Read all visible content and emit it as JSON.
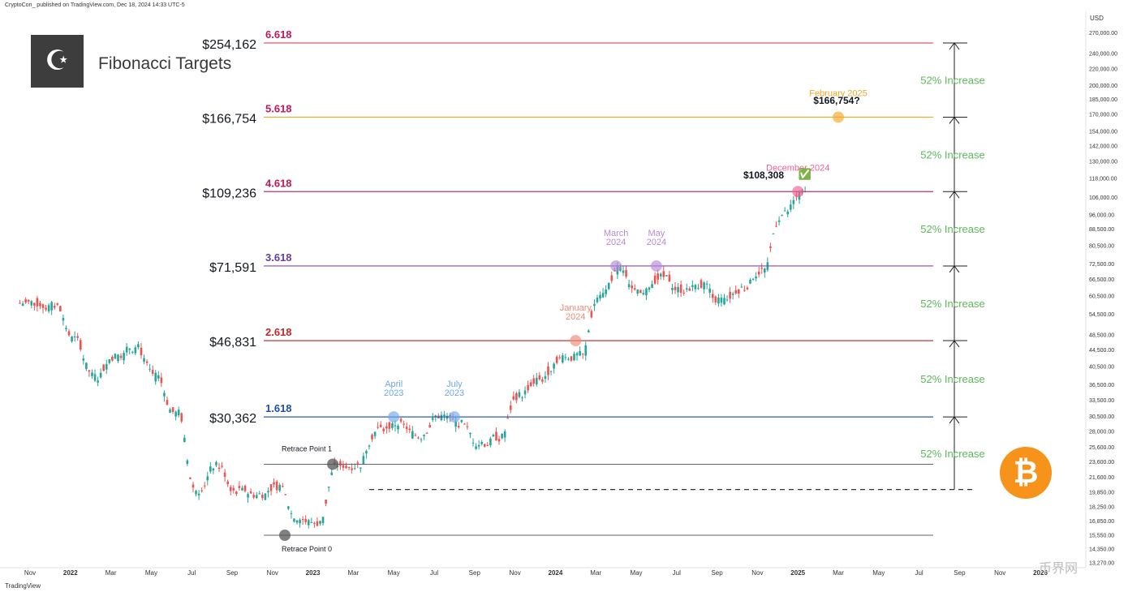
{
  "header": {
    "published": "CryptoCon_ published on TradingView.com, Dec 18, 2024 14:33 UTC-5",
    "title": "Fibonacci Targets",
    "logo": "C-logo-icon"
  },
  "footer": {
    "brand": "TradingView",
    "watermark": "币界网"
  },
  "colors": {
    "up": "#26a69a",
    "down": "#ef5350",
    "increase": "#5cb85c",
    "btc": "#f7931a"
  },
  "chart_data": {
    "type": "candlestick",
    "axis_currency": "USD",
    "scale": "log",
    "y_ticks": [
      "270,000.00",
      "240,000.00",
      "220,000.00",
      "200,000.00",
      "185,000.00",
      "170,000.00",
      "154,000.00",
      "142,000.00",
      "130,000.00",
      "118,000.00",
      "106,000.00",
      "96,000.00",
      "88,500.00",
      "80,500.00",
      "72,500.00",
      "66,500.00",
      "60,500.00",
      "54,500.00",
      "48,500.00",
      "44,500.00",
      "40,500.00",
      "36,500.00",
      "33,500.00",
      "30,500.00",
      "28,000.00",
      "25,600.00",
      "23,600.00",
      "21,600.00",
      "19,850.00",
      "18,250.00",
      "16,850.00",
      "15,550.00",
      "14,350.00",
      "13,270.00"
    ],
    "x_ticks": [
      "Nov",
      "2022",
      "Mar",
      "May",
      "Jul",
      "Sep",
      "Nov",
      "2023",
      "Mar",
      "May",
      "Jul",
      "Sep",
      "Nov",
      "2024",
      "Mar",
      "May",
      "Jul",
      "Sep",
      "Nov",
      "2025",
      "Mar",
      "May",
      "Jul",
      "Sep",
      "Nov",
      "2026"
    ],
    "fib_levels": [
      {
        "ratio": "6.618",
        "price_label": "$254,162",
        "price": 254162,
        "color": "#e05a6a",
        "ratio_color": "#c2185b"
      },
      {
        "ratio": "5.618",
        "price_label": "$166,754",
        "price": 166754,
        "color": "#f5a623",
        "ratio_color": "#c2185b"
      },
      {
        "ratio": "4.618",
        "price_label": "$109,236",
        "price": 109236,
        "color": "#b5338a",
        "ratio_color": "#c2185b"
      },
      {
        "ratio": "3.618",
        "price_label": "$71,591",
        "price": 71591,
        "color": "#8e44ad",
        "ratio_color": "#6a3d9a"
      },
      {
        "ratio": "2.618",
        "price_label": "$46,831",
        "price": 46831,
        "color": "#b22222",
        "ratio_color": "#c62828"
      },
      {
        "ratio": "1.618",
        "price_label": "$30,362",
        "price": 30362,
        "color": "#2a5db0",
        "ratio_color": "#1f4fa8"
      }
    ],
    "retrace_levels": [
      {
        "label": "Retrace Point 1",
        "price": 23200
      },
      {
        "label": "Retrace Point 0",
        "price": 15500
      }
    ],
    "dashed_level": 20100,
    "increase_label": "52% Increase",
    "markers": [
      {
        "label": [
          "April",
          "2023"
        ],
        "date": "2023-04",
        "price": 30362,
        "color": "#6fa8e8"
      },
      {
        "label": [
          "July",
          "2023"
        ],
        "date": "2023-07",
        "price": 30362,
        "color": "#6fa8e8"
      },
      {
        "label": [
          "January",
          "2024"
        ],
        "date": "2024-01",
        "price": 46831,
        "color": "#ef8a7a"
      },
      {
        "label": [
          "March",
          "2024"
        ],
        "date": "2024-03",
        "price": 71591,
        "color": "#b48ad6"
      },
      {
        "label": [
          "May",
          "2024"
        ],
        "date": "2024-05",
        "price": 71591,
        "color": "#b48ad6"
      },
      {
        "label": [
          "December 2024"
        ],
        "date": "2024-12",
        "price": 109236,
        "color": "#f06292"
      },
      {
        "label": [
          "February 2025"
        ],
        "date": "2025-02",
        "price": 166754,
        "color": "#f5a623"
      }
    ],
    "annotations": [
      {
        "text": "$108,308",
        "near": "December 2024"
      },
      {
        "text": "$166,754?",
        "near": "February 2025"
      }
    ],
    "checkmark": "✅",
    "series": [
      {
        "name": "",
        "start": "2021-10",
        "monthly_close": [
          58000,
          57000,
          47000,
          38000,
          43000,
          45000,
          38000,
          31000,
          20000,
          23000,
          20000,
          19500,
          20500,
          17000,
          16600,
          23100,
          23200,
          28400,
          29200,
          27200,
          30500,
          29200,
          26000,
          27000,
          34500,
          37700,
          42500,
          43000,
          61000,
          70000,
          60600,
          67500,
          62600,
          64600,
          58900,
          63300,
          70000,
          96000,
          108000
        ]
      }
    ]
  }
}
